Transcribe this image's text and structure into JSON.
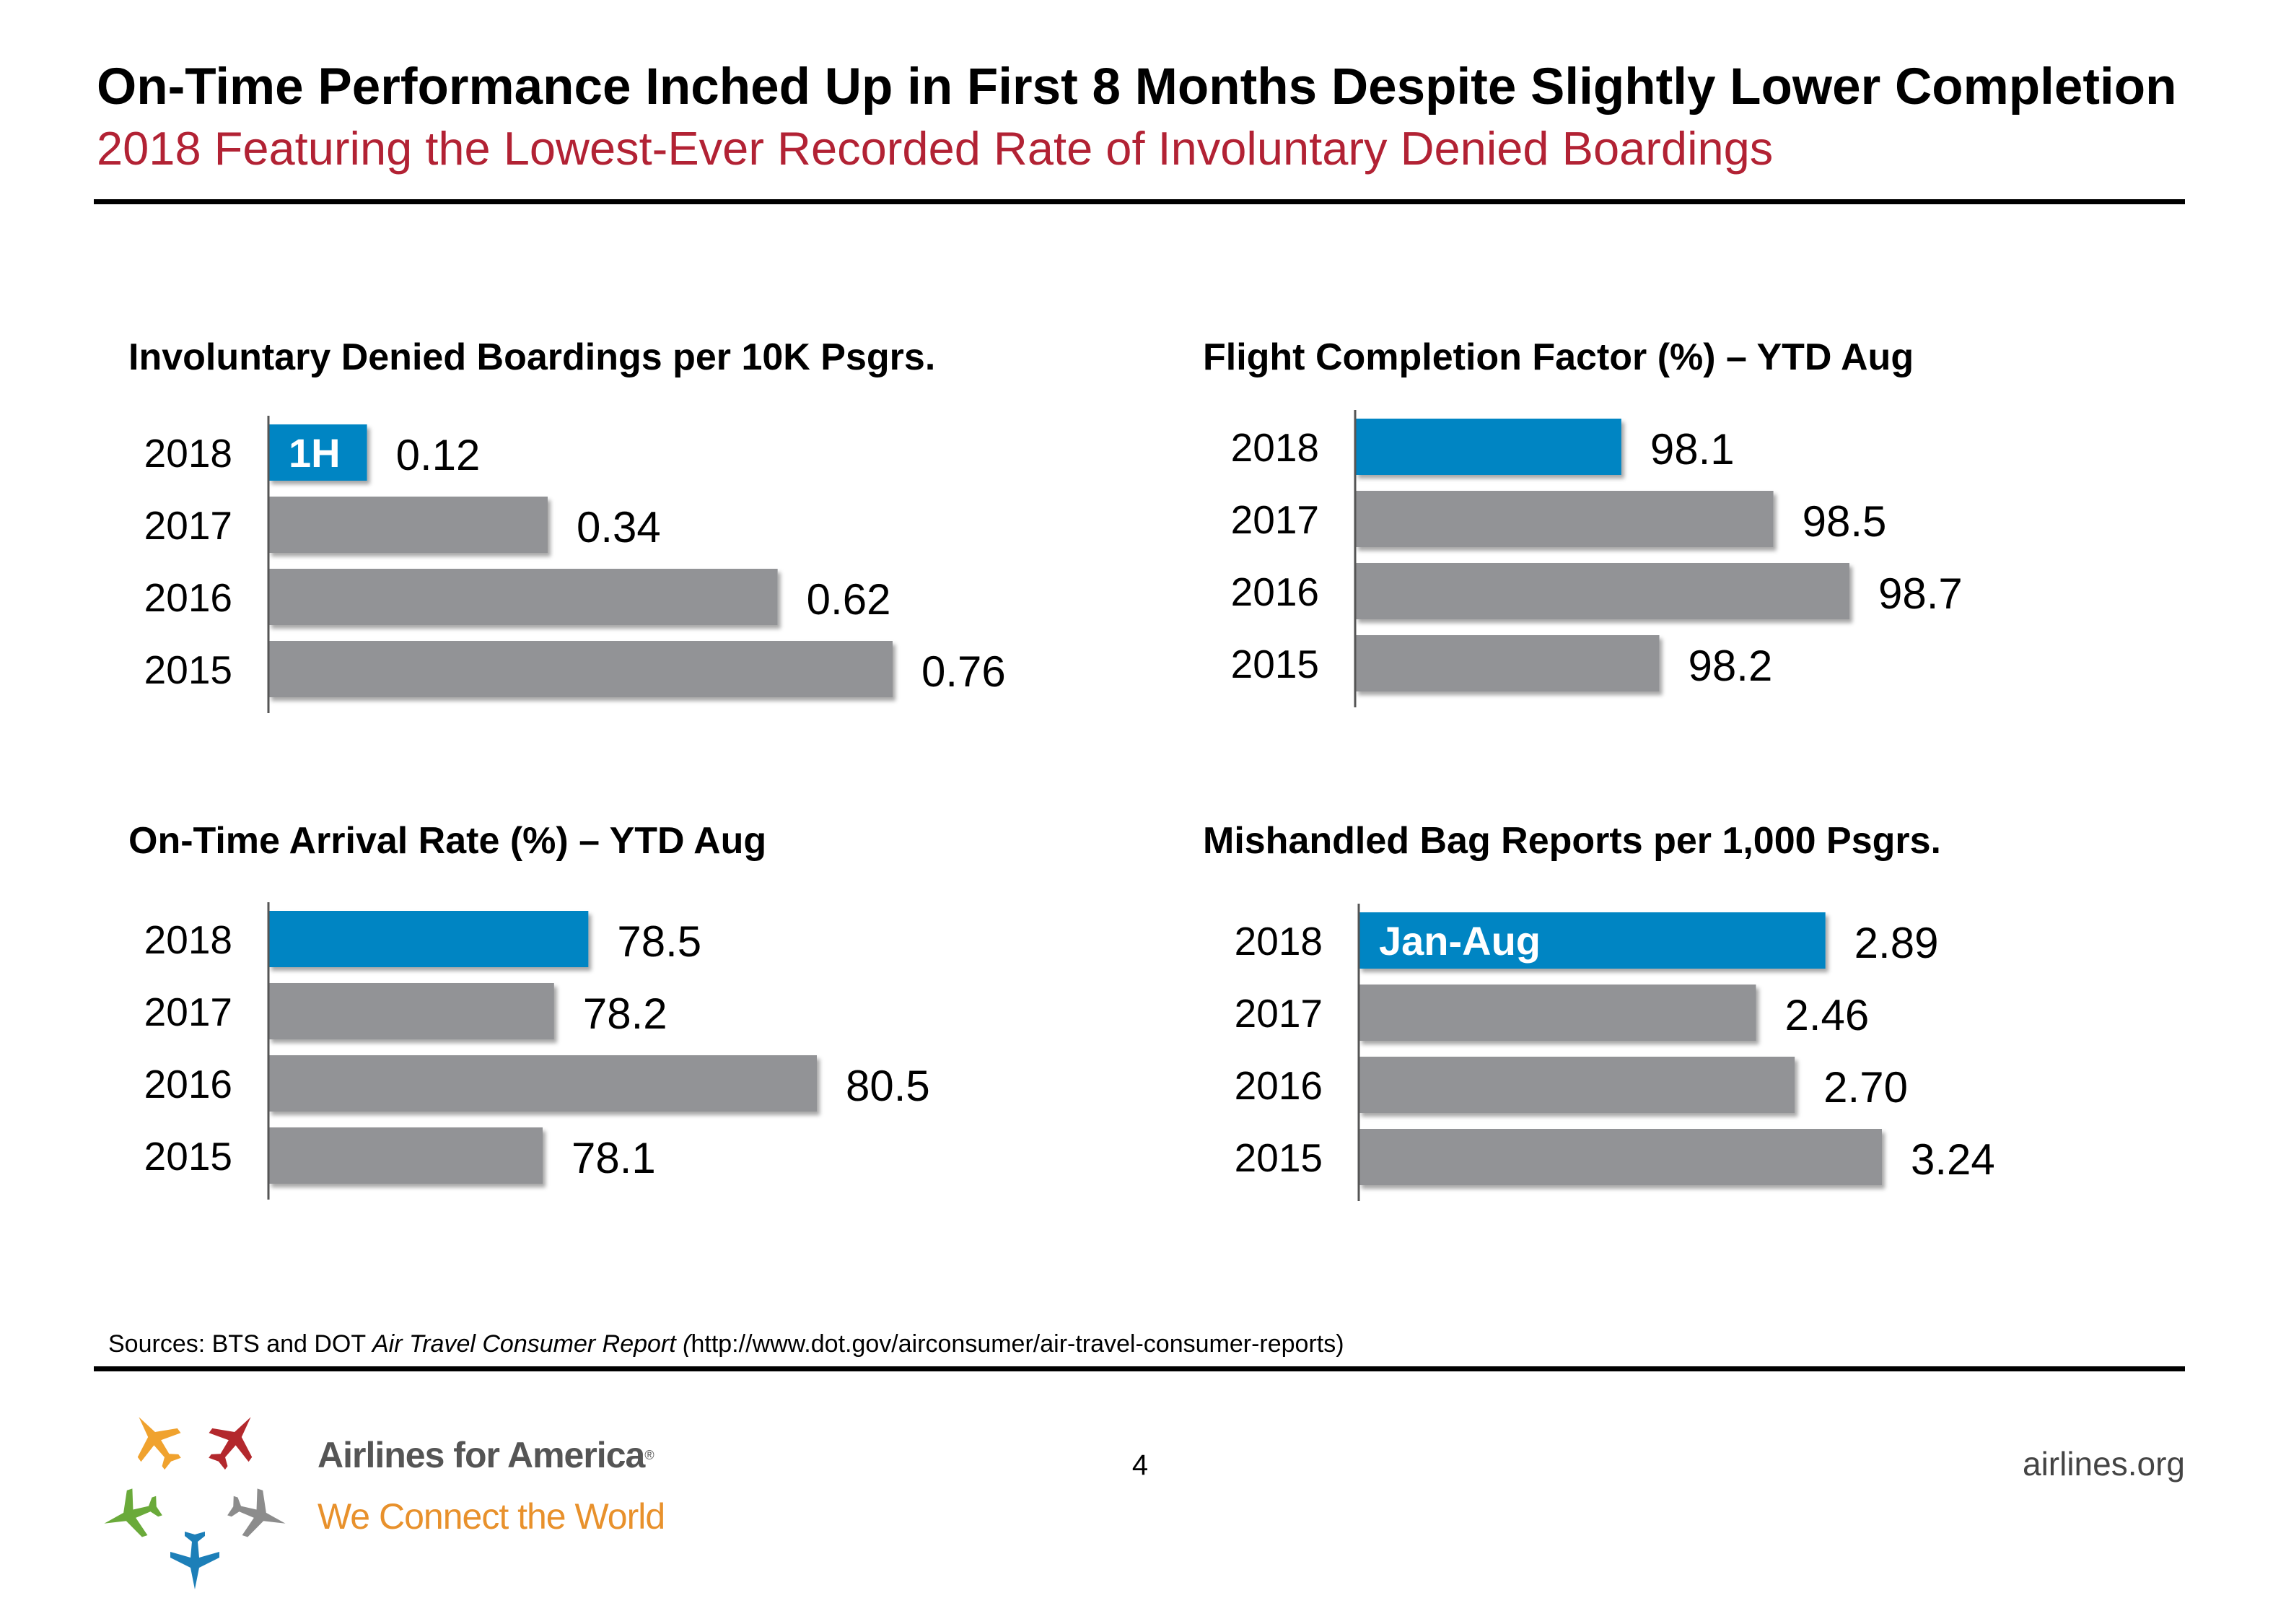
{
  "header": {
    "title": "On-Time Performance Inched Up in First 8 Months Despite Slightly Lower Completion",
    "subtitle": "2018 Featuring the Lowest-Ever Recorded Rate of Involuntary Denied Boardings"
  },
  "colors": {
    "highlight": "#0085c3",
    "bar": "#929396",
    "subtitle": "#b22234",
    "brand_tagline": "#e8912c"
  },
  "chart_data": [
    {
      "type": "bar",
      "orientation": "horizontal",
      "title": "Involuntary Denied Boardings per 10K Psgrs.",
      "categories": [
        "2018",
        "2017",
        "2016",
        "2015"
      ],
      "values": [
        0.12,
        0.34,
        0.62,
        0.76
      ],
      "labels": [
        "0.12",
        "0.34",
        "0.62",
        "0.76"
      ],
      "highlight_index": 0,
      "highlight_note": "1H",
      "xlim": [
        0,
        0.76
      ]
    },
    {
      "type": "bar",
      "orientation": "horizontal",
      "title": "Flight Completion Factor (%) – YTD Aug",
      "categories": [
        "2018",
        "2017",
        "2016",
        "2015"
      ],
      "values": [
        98.1,
        98.5,
        98.7,
        98.2
      ],
      "labels": [
        "98.1",
        "98.5",
        "98.7",
        "98.2"
      ],
      "highlight_index": 0,
      "highlight_note": "",
      "xlim": [
        97.4,
        98.7
      ]
    },
    {
      "type": "bar",
      "orientation": "horizontal",
      "title": "On-Time Arrival Rate (%) – YTD Aug",
      "categories": [
        "2018",
        "2017",
        "2016",
        "2015"
      ],
      "values": [
        78.5,
        78.2,
        80.5,
        78.1
      ],
      "labels": [
        "78.5",
        "78.2",
        "80.5",
        "78.1"
      ],
      "highlight_index": 0,
      "highlight_note": "",
      "xlim": [
        75.7,
        80.5
      ]
    },
    {
      "type": "bar",
      "orientation": "horizontal",
      "title": "Mishandled Bag Reports per 1,000 Psgrs.",
      "categories": [
        "2018",
        "2017",
        "2016",
        "2015"
      ],
      "values": [
        2.89,
        2.46,
        2.7,
        3.24
      ],
      "labels": [
        "2.89",
        "2.46",
        "2.70",
        "3.24"
      ],
      "highlight_index": 0,
      "highlight_note": "Jan-Aug",
      "xlim": [
        0,
        3.24
      ]
    }
  ],
  "sources": {
    "prefix": "Sources: BTS and DOT ",
    "italic": "Air Travel Consumer Report (",
    "suffix": "http://www.dot.gov/airconsumer/air-travel-consumer-reports)"
  },
  "footer": {
    "page_number": "4",
    "site": "airlines.org",
    "brand_name": "Airlines for America",
    "brand_mark": "®",
    "tagline": "We Connect the World",
    "logo_icon": "airplanes-star-logo-icon"
  }
}
